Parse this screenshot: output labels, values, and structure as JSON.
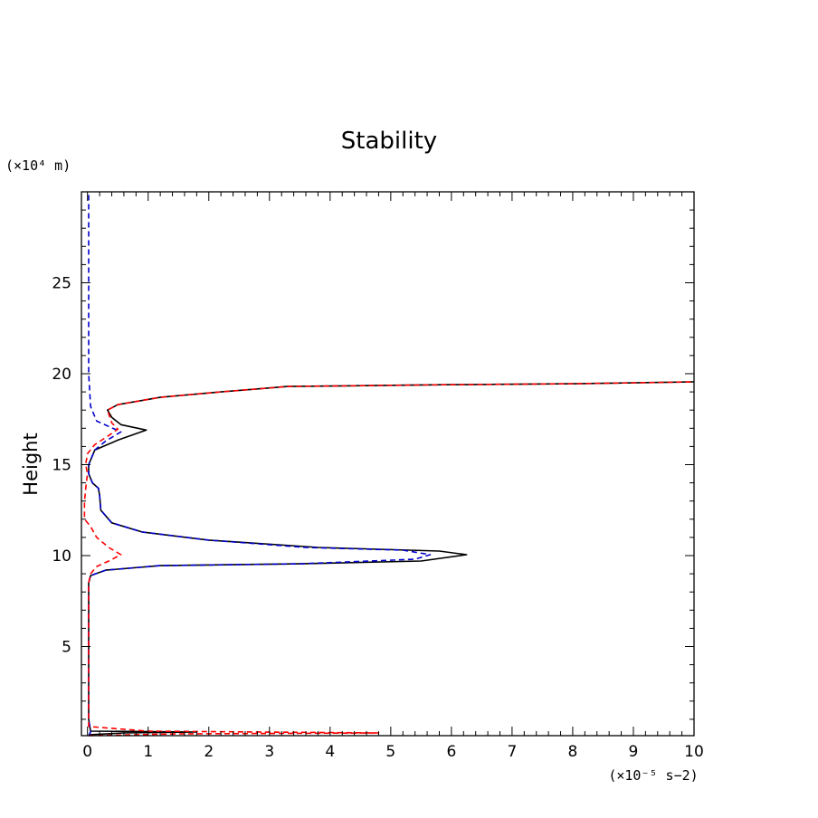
{
  "chart_data": {
    "type": "line",
    "title": "Stability",
    "ylabel": "Height",
    "xlabel": "",
    "y_unit_label": "(×10⁴ m)",
    "x_unit_label": "(×10⁻⁵ s−2)",
    "xlim": [
      -0.1,
      10
    ],
    "ylim": [
      0.1,
      30
    ],
    "x_ticks": [
      0,
      1,
      2,
      3,
      4,
      5,
      6,
      7,
      8,
      9,
      10
    ],
    "y_ticks": [
      5,
      10,
      15,
      20,
      25
    ],
    "grid": false,
    "series": [
      {
        "color": "#000000",
        "dash": "solid",
        "points": [
          [
            0.02,
            0.15
          ],
          [
            0.6,
            0.25
          ],
          [
            1.8,
            0.3
          ],
          [
            0.05,
            0.35
          ],
          [
            0.02,
            1.0
          ],
          [
            0.02,
            8.5
          ],
          [
            0.05,
            8.9
          ],
          [
            0.3,
            9.2
          ],
          [
            1.2,
            9.45
          ],
          [
            3.5,
            9.55
          ],
          [
            5.5,
            9.7
          ],
          [
            6.25,
            10.05
          ],
          [
            5.8,
            10.25
          ],
          [
            3.8,
            10.45
          ],
          [
            2.0,
            10.85
          ],
          [
            0.9,
            11.3
          ],
          [
            0.4,
            11.8
          ],
          [
            0.22,
            12.5
          ],
          [
            0.2,
            13.3
          ],
          [
            0.18,
            13.7
          ],
          [
            0.08,
            14.0
          ],
          [
            0.02,
            14.5
          ],
          [
            0.02,
            15.0
          ],
          [
            0.12,
            15.8
          ],
          [
            0.5,
            16.35
          ],
          [
            0.97,
            16.9
          ],
          [
            0.55,
            17.2
          ],
          [
            0.4,
            17.6
          ],
          [
            0.33,
            18.0
          ],
          [
            0.5,
            18.3
          ],
          [
            1.2,
            18.7
          ],
          [
            2.2,
            19.0
          ],
          [
            3.3,
            19.3
          ],
          [
            6.0,
            19.4
          ],
          [
            8.0,
            19.45
          ],
          [
            10.0,
            19.55
          ]
        ]
      },
      {
        "color": "#0000cc",
        "dash": "dashed",
        "points": [
          [
            0.02,
            0.1
          ],
          [
            0.05,
            0.3
          ],
          [
            0.02,
            1.0
          ],
          [
            0.02,
            8.5
          ],
          [
            0.05,
            8.9
          ],
          [
            0.3,
            9.2
          ],
          [
            1.2,
            9.45
          ],
          [
            3.5,
            9.55
          ],
          [
            5.4,
            9.8
          ],
          [
            5.65,
            10.05
          ],
          [
            5.2,
            10.3
          ],
          [
            3.6,
            10.45
          ],
          [
            2.0,
            10.85
          ],
          [
            0.9,
            11.3
          ],
          [
            0.4,
            11.8
          ],
          [
            0.22,
            12.5
          ],
          [
            0.2,
            13.3
          ],
          [
            0.18,
            13.7
          ],
          [
            0.08,
            14.0
          ],
          [
            0.02,
            14.5
          ],
          [
            0.02,
            15.0
          ],
          [
            0.12,
            15.8
          ],
          [
            0.3,
            16.3
          ],
          [
            0.55,
            16.8
          ],
          [
            0.35,
            17.1
          ],
          [
            0.15,
            17.4
          ],
          [
            0.05,
            18.2
          ],
          [
            0.02,
            20.0
          ],
          [
            0.02,
            30.0
          ]
        ]
      },
      {
        "color": "#ff0000",
        "dash": "dashed",
        "points": [
          [
            0.02,
            0.1
          ],
          [
            1.5,
            0.2
          ],
          [
            4.8,
            0.25
          ],
          [
            1.0,
            0.35
          ],
          [
            0.02,
            0.6
          ],
          [
            0.02,
            8.5
          ],
          [
            0.05,
            9.0
          ],
          [
            0.15,
            9.4
          ],
          [
            0.35,
            9.7
          ],
          [
            0.55,
            10.05
          ],
          [
            0.35,
            10.45
          ],
          [
            0.15,
            11.0
          ],
          [
            0.05,
            11.6
          ],
          [
            -0.05,
            12.0
          ],
          [
            -0.05,
            13.0
          ],
          [
            -0.02,
            14.0
          ],
          [
            0.0,
            14.5
          ],
          [
            -0.03,
            15.0
          ],
          [
            0.0,
            15.6
          ],
          [
            0.12,
            16.1
          ],
          [
            0.35,
            16.6
          ],
          [
            0.5,
            16.95
          ],
          [
            0.4,
            17.3
          ],
          [
            0.33,
            18.0
          ],
          [
            0.5,
            18.3
          ],
          [
            1.2,
            18.7
          ],
          [
            2.2,
            19.0
          ],
          [
            3.3,
            19.3
          ],
          [
            6.0,
            19.4
          ],
          [
            8.0,
            19.45
          ],
          [
            10.0,
            19.55
          ]
        ]
      }
    ]
  }
}
